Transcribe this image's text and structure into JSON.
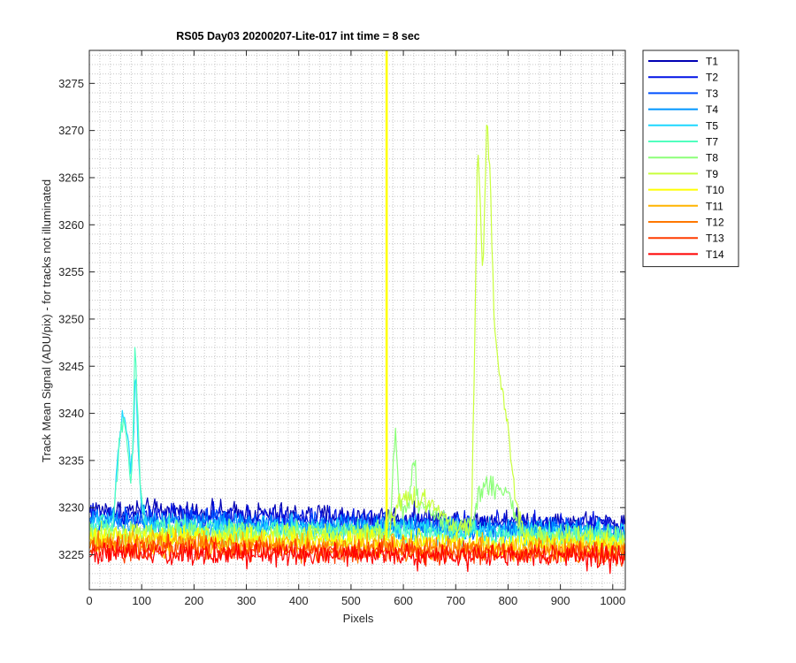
{
  "chart_data": {
    "type": "line",
    "title": "RS05 Day03 20200207-Lite-017 int time = 8 sec",
    "xlabel": "Pixels",
    "ylabel": "Track Mean Signal (ADU/pix) - for tracks not illuminated",
    "xlim": [
      0,
      1024
    ],
    "ylim": [
      3221.3,
      3278.5
    ],
    "xticks": [
      0,
      100,
      200,
      300,
      400,
      500,
      600,
      700,
      800,
      900,
      1000
    ],
    "yticks": [
      3225,
      3230,
      3235,
      3240,
      3245,
      3250,
      3255,
      3260,
      3265,
      3270,
      3275
    ],
    "grid": "major and minor, dotted",
    "legend_position": "outside top-right",
    "series": [
      {
        "name": "T1",
        "color": "#0000b4",
        "baseline": 3229.0,
        "noise": 0.8,
        "features": [
          [
            0,
            3229.8
          ],
          [
            1024,
            3228.3
          ]
        ]
      },
      {
        "name": "T2",
        "color": "#0012e6",
        "baseline": 3228.7,
        "noise": 0.8,
        "features": [
          [
            0,
            3229.3
          ],
          [
            1024,
            3228.0
          ]
        ]
      },
      {
        "name": "T3",
        "color": "#0050ff",
        "baseline": 3228.3,
        "noise": 0.8,
        "features": [
          [
            0,
            3228.8
          ],
          [
            1024,
            3227.6
          ]
        ]
      },
      {
        "name": "T4",
        "color": "#0096ff",
        "baseline": 3228.0,
        "noise": 0.8,
        "features": [
          [
            0,
            3228.5
          ],
          [
            1024,
            3227.4
          ]
        ]
      },
      {
        "name": "T5",
        "color": "#1ed7ff",
        "baseline": 3227.8,
        "noise": 0.8,
        "features": [
          [
            0,
            3228.2
          ],
          [
            45,
            3228.3
          ],
          [
            55,
            3236.0
          ],
          [
            62,
            3239.2
          ],
          [
            68,
            3239.5
          ],
          [
            75,
            3236.0
          ],
          [
            80,
            3233.0
          ],
          [
            85,
            3238.0
          ],
          [
            88,
            3245.5
          ],
          [
            92,
            3238.0
          ],
          [
            100,
            3230.0
          ],
          [
            110,
            3228.0
          ],
          [
            1024,
            3227.2
          ]
        ]
      },
      {
        "name": "T7",
        "color": "#50ffbe",
        "baseline": 3227.6,
        "noise": 0.8,
        "features": [
          [
            0,
            3228.0
          ],
          [
            45,
            3228.0
          ],
          [
            55,
            3235.0
          ],
          [
            62,
            3239.0
          ],
          [
            68,
            3239.0
          ],
          [
            75,
            3235.0
          ],
          [
            80,
            3232.0
          ],
          [
            85,
            3240.0
          ],
          [
            88,
            3249.0
          ],
          [
            92,
            3240.0
          ],
          [
            100,
            3230.0
          ],
          [
            110,
            3227.8
          ],
          [
            1024,
            3227.0
          ]
        ]
      },
      {
        "name": "T8",
        "color": "#8cff78",
        "baseline": 3227.0,
        "noise": 0.8,
        "features": [
          [
            0,
            3227.3
          ],
          [
            560,
            3227.3
          ],
          [
            575,
            3229.0
          ],
          [
            585,
            3238.0
          ],
          [
            592,
            3230.0
          ],
          [
            610,
            3229.5
          ],
          [
            620,
            3236.0
          ],
          [
            628,
            3230.0
          ],
          [
            700,
            3228.0
          ],
          [
            730,
            3228.0
          ],
          [
            745,
            3231.0
          ],
          [
            760,
            3232.5
          ],
          [
            780,
            3232.0
          ],
          [
            800,
            3232.0
          ],
          [
            815,
            3229.0
          ],
          [
            830,
            3227.0
          ],
          [
            1024,
            3226.6
          ]
        ]
      },
      {
        "name": "T9",
        "color": "#c8ff3c",
        "baseline": 3226.7,
        "noise": 0.8,
        "features": [
          [
            0,
            3227.0
          ],
          [
            570,
            3227.0
          ],
          [
            590,
            3231.0
          ],
          [
            620,
            3231.0
          ],
          [
            660,
            3230.5
          ],
          [
            690,
            3228.0
          ],
          [
            730,
            3228.0
          ],
          [
            737,
            3250.0
          ],
          [
            742,
            3270.0
          ],
          [
            748,
            3260.0
          ],
          [
            752,
            3254.0
          ],
          [
            760,
            3272.0
          ],
          [
            765,
            3265.0
          ],
          [
            772,
            3252.0
          ],
          [
            780,
            3245.0
          ],
          [
            790,
            3242.0
          ],
          [
            800,
            3238.0
          ],
          [
            810,
            3233.0
          ],
          [
            820,
            3229.0
          ],
          [
            835,
            3227.0
          ],
          [
            1024,
            3226.3
          ]
        ]
      },
      {
        "name": "T10",
        "color": "#ffff00",
        "baseline": 3226.4,
        "noise": 0.8,
        "features": [
          [
            0,
            3226.8
          ],
          [
            1024,
            3226.0
          ]
        ]
      },
      {
        "name": "T11",
        "color": "#ffb400",
        "baseline": 3226.0,
        "noise": 0.8,
        "features": [
          [
            0,
            3226.3
          ],
          [
            1024,
            3225.6
          ]
        ]
      },
      {
        "name": "T12",
        "color": "#ff7800",
        "baseline": 3225.7,
        "noise": 0.8,
        "features": [
          [
            0,
            3226.0
          ],
          [
            1024,
            3225.3
          ]
        ]
      },
      {
        "name": "T13",
        "color": "#ff3c00",
        "baseline": 3225.4,
        "noise": 0.8,
        "features": [
          [
            0,
            3225.6
          ],
          [
            1024,
            3225.0
          ]
        ]
      },
      {
        "name": "T14",
        "color": "#ff0000",
        "baseline": 3225.0,
        "noise": 0.8,
        "features": [
          [
            0,
            3225.2
          ],
          [
            1024,
            3224.7
          ]
        ]
      }
    ],
    "vertical_spike": {
      "series": "T10",
      "x": 568,
      "y_top": 3278.5,
      "color": "#ffff00"
    },
    "colors": {
      "axis": "#262626",
      "grid": "#c8c8c8",
      "background": "#ffffff"
    }
  }
}
